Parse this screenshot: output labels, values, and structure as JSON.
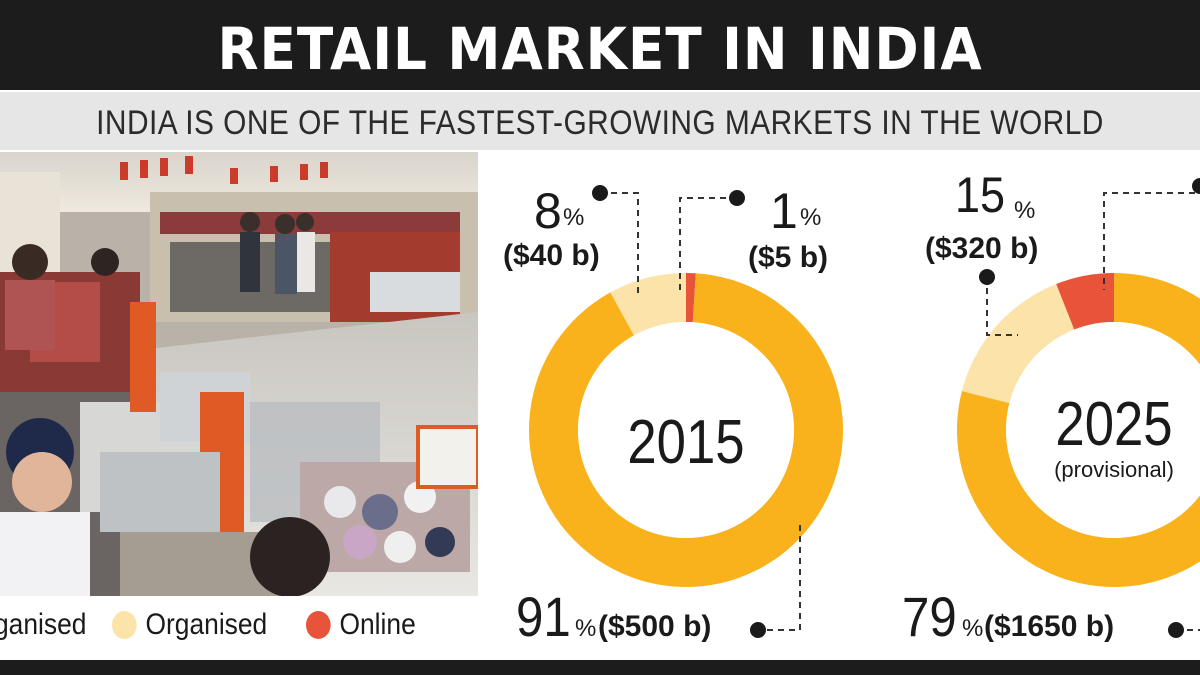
{
  "header": {
    "title": "RETAIL MARKET IN INDIA",
    "subtitle": "INDIA IS ONE OF THE FASTEST-GROWING MARKETS IN THE WORLD"
  },
  "colors": {
    "unorganised": "#f9b21b",
    "organised": "#fce3a9",
    "online": "#e8543a",
    "bar": "#1c1c1c"
  },
  "legend": [
    {
      "label": "ganised",
      "color": "#f9b21b"
    },
    {
      "label": "Organised",
      "color": "#fce3a9"
    },
    {
      "label": "Online",
      "color": "#e8543a"
    }
  ],
  "chart_data": [
    {
      "type": "pie",
      "center_label": "2015",
      "center_sublabel": "",
      "slices": [
        {
          "category": "Unorganised",
          "percent": 91,
          "value_label": "($500 b)",
          "color": "#f9b21b"
        },
        {
          "category": "Organised",
          "percent": 8,
          "value_label": "($40 b)",
          "color": "#fce3a9"
        },
        {
          "category": "Online",
          "percent": 1,
          "value_label": "($5 b)",
          "color": "#e8543a"
        }
      ]
    },
    {
      "type": "pie",
      "center_label": "2025",
      "center_sublabel": "(provisional)",
      "slices": [
        {
          "category": "Unorganised",
          "percent": 79,
          "value_label": "($1650 b)",
          "color": "#f9b21b"
        },
        {
          "category": "Organised",
          "percent": 15,
          "value_label": "($320 b)",
          "color": "#fce3a9"
        },
        {
          "category": "Online",
          "percent": 6,
          "value_label": "",
          "color": "#e8543a"
        }
      ]
    }
  ]
}
